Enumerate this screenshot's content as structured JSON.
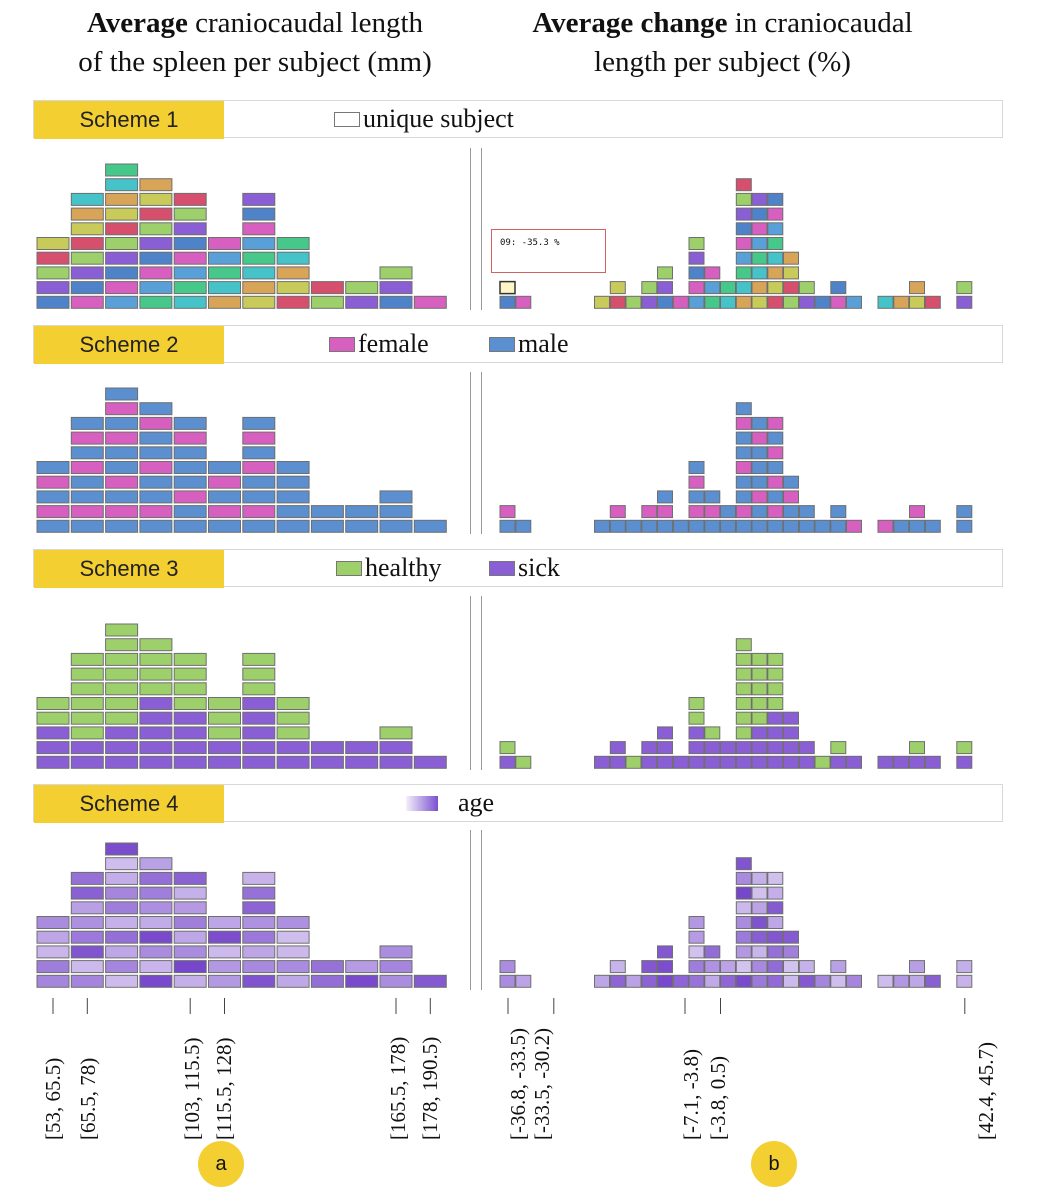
{
  "headers": {
    "left_bold": "Average",
    "left_rest": " craniocaudal length",
    "left_line2": "of the spleen per subject (mm)",
    "right_bold": "Average change",
    "right_rest": " in craniocaudal",
    "right_line2": "length per subject (%)"
  },
  "schemes": [
    {
      "label": "Scheme 1",
      "legend": [
        {
          "text": "unique subject",
          "color": "#ffffff"
        }
      ]
    },
    {
      "label": "Scheme 2",
      "legend": [
        {
          "text": "female",
          "color": "#d65fc0"
        },
        {
          "text": "male",
          "color": "#5b8fd0"
        }
      ]
    },
    {
      "label": "Scheme 3",
      "legend": [
        {
          "text": "healthy",
          "color": "#9dd06a"
        },
        {
          "text": "sick",
          "color": "#8a5ed4"
        }
      ]
    },
    {
      "label": "Scheme 4",
      "legend": [
        {
          "text": "age",
          "color": "#8a5ed4"
        }
      ]
    }
  ],
  "tooltip": "09: -35.3 %",
  "panel_tags": [
    "a",
    "b"
  ],
  "colors": {
    "female": "#d65fc0",
    "male": "#5b8fd0",
    "healthy": "#9dd06a",
    "sick": "#8a5ed4",
    "highlight": "#f4cf32",
    "unique": [
      "#4f83c9",
      "#d64f6c",
      "#45c3c8",
      "#d65fc0",
      "#9dd06a",
      "#d8a458",
      "#5aa0d8",
      "#8a5ed4",
      "#c8cb5a",
      "#46c88b"
    ]
  },
  "chart_data": [
    {
      "type": "histogram",
      "title": "Average craniocaudal length of the spleen per subject (mm)",
      "bin_labels": [
        "[53, 65.5)",
        "[65.5, 78)",
        "[103, 115.5)",
        "[115.5, 128)",
        "[165.5, 178)",
        "[178, 190.5)"
      ],
      "counts": [
        5,
        8,
        10,
        9,
        8,
        5,
        8,
        5,
        2,
        2,
        3,
        1
      ],
      "female": [
        2,
        3,
        4,
        3,
        2,
        2,
        3,
        0,
        0,
        0,
        0,
        0
      ],
      "healthy": [
        2,
        6,
        7,
        4,
        4,
        3,
        3,
        3,
        0,
        0,
        1,
        0
      ]
    },
    {
      "type": "histogram",
      "title": "Average change in craniocaudal length per subject (%)",
      "bin_labels": [
        "[-36.8, -33.5)",
        "[-33.5, -30.2)",
        "[-7.1, -3.8)",
        "[-3.8, 0.5)",
        "[42.4, 45.7)"
      ],
      "counts": [
        2,
        1,
        0,
        0,
        0,
        0,
        1,
        2,
        1,
        2,
        3,
        1,
        5,
        3,
        2,
        9,
        8,
        8,
        4,
        2,
        1,
        2,
        1,
        0,
        1,
        1,
        2,
        1,
        0,
        2
      ],
      "female": [
        1,
        0,
        0,
        0,
        0,
        0,
        0,
        1,
        0,
        1,
        1,
        0,
        2,
        1,
        0,
        3,
        2,
        4,
        1,
        0,
        0,
        0,
        1,
        0,
        1,
        0,
        1,
        0,
        0,
        0
      ],
      "healthy": [
        1,
        1,
        0,
        0,
        0,
        0,
        0,
        0,
        1,
        0,
        0,
        0,
        2,
        1,
        0,
        7,
        5,
        4,
        0,
        0,
        1,
        1,
        0,
        0,
        0,
        0,
        1,
        0,
        0,
        1
      ]
    }
  ]
}
